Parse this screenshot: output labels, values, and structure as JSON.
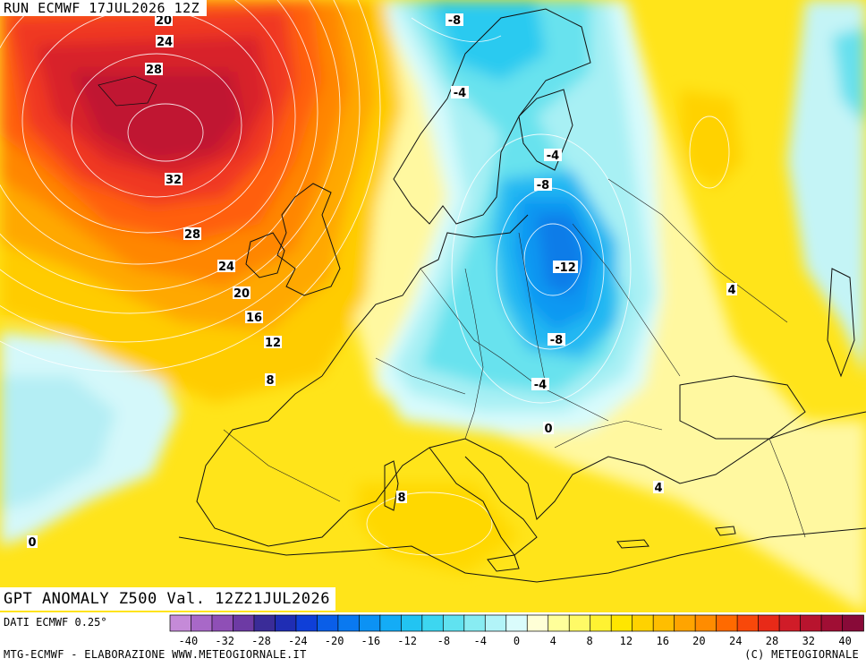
{
  "header": {
    "run": "RUN ECMWF 17JUL2026 12Z"
  },
  "title": {
    "text": "GPT ANOMALY Z500 Val. 12Z21JUL2026"
  },
  "footer": {
    "source": "DATI ECMWF 0.25°",
    "credit_left": "MTG-ECMWF - ELABORAZIONE WWW.METEOGIORNALE.IT",
    "credit_right": "(C) METEOGIORNALE"
  },
  "legend": {
    "ticks": [
      "-40",
      "-32",
      "-28",
      "-24",
      "-20",
      "-16",
      "-12",
      "-8",
      "-4",
      "0",
      "4",
      "8",
      "12",
      "16",
      "20",
      "24",
      "28",
      "32",
      "40"
    ],
    "colors": [
      "#c58ad8",
      "#a868c8",
      "#8f4fb6",
      "#6d3aa4",
      "#3a2c98",
      "#1f2db4",
      "#0f3fd8",
      "#0a5ee8",
      "#0a79f0",
      "#0c92f4",
      "#14acf6",
      "#22c4f2",
      "#3dd6f0",
      "#60e2f0",
      "#88ecf2",
      "#b2f4f8",
      "#dafcfc",
      "#ffffd6",
      "#ffff9a",
      "#fffa66",
      "#fff232",
      "#ffe600",
      "#ffd200",
      "#ffbe00",
      "#ffa400",
      "#ff8c00",
      "#ff6a00",
      "#f8480a",
      "#e82a18",
      "#d01c28",
      "#b8142e",
      "#a00e34",
      "#880a38"
    ]
  },
  "contour_labels": [
    {
      "text": "20"
    },
    {
      "text": "24"
    },
    {
      "text": "28"
    },
    {
      "text": "32"
    },
    {
      "text": "28"
    },
    {
      "text": "24"
    },
    {
      "text": "20"
    },
    {
      "text": "16"
    },
    {
      "text": "12"
    },
    {
      "text": "8"
    },
    {
      "text": "-8"
    },
    {
      "text": "-4"
    },
    {
      "text": "-4"
    },
    {
      "text": "-8"
    },
    {
      "text": "-12"
    },
    {
      "text": "-8"
    },
    {
      "text": "-4"
    },
    {
      "text": "0"
    },
    {
      "text": "4"
    },
    {
      "text": "4"
    },
    {
      "text": "8"
    },
    {
      "text": "0"
    }
  ]
}
